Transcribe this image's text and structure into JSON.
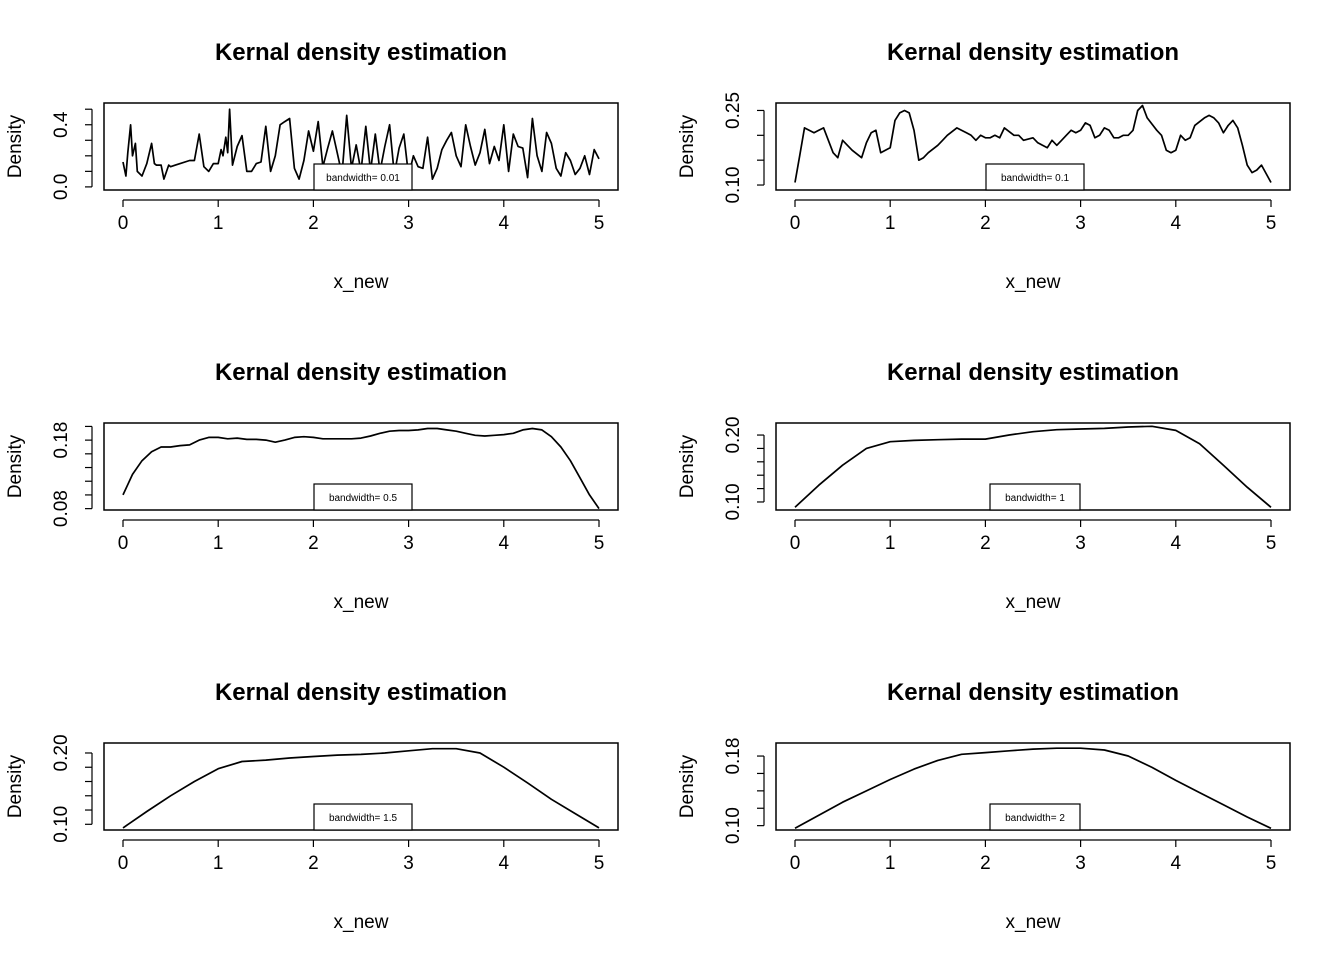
{
  "chart_data": [
    {
      "type": "line",
      "title": "Kernal density estimation",
      "xlabel": "x_new",
      "ylabel": "Density",
      "xlim": [
        0,
        5
      ],
      "ylim": [
        -0.02,
        0.54
      ],
      "x_ticks": [
        "0",
        "1",
        "2",
        "3",
        "4",
        "5"
      ],
      "y_ticks": [
        {
          "v": 0.0,
          "label": "0.0"
        },
        {
          "v": 0.1
        },
        {
          "v": 0.2
        },
        {
          "v": 0.3
        },
        {
          "v": 0.4,
          "label": "0.4"
        },
        {
          "v": 0.5
        }
      ],
      "legend": {
        "label": "bandwidth=",
        "value": "0.01",
        "position": "bottom"
      },
      "series": [
        {
          "x": [
            0,
            0.03,
            0.05,
            0.08,
            0.1,
            0.13,
            0.15,
            0.2,
            0.25,
            0.3,
            0.33,
            0.35,
            0.4,
            0.43,
            0.48,
            0.5,
            0.55,
            0.6,
            0.7,
            0.75,
            0.8,
            0.85,
            0.9,
            0.95,
            1,
            1.03,
            1.05,
            1.08,
            1.1,
            1.12,
            1.15,
            1.2,
            1.25,
            1.3,
            1.35,
            1.4,
            1.45,
            1.5,
            1.55,
            1.6,
            1.65,
            1.7,
            1.75,
            1.8,
            1.85,
            1.9,
            1.95,
            2,
            2.05,
            2.1,
            2.15,
            2.2,
            2.25,
            2.3,
            2.35,
            2.4,
            2.45,
            2.5,
            2.55,
            2.6,
            2.65,
            2.7,
            2.75,
            2.8,
            2.85,
            2.9,
            2.95,
            3,
            3.05,
            3.1,
            3.15,
            3.2,
            3.25,
            3.3,
            3.35,
            3.4,
            3.45,
            3.5,
            3.55,
            3.6,
            3.65,
            3.7,
            3.75,
            3.8,
            3.85,
            3.9,
            3.95,
            4,
            4.05,
            4.1,
            4.15,
            4.2,
            4.25,
            4.3,
            4.35,
            4.4,
            4.45,
            4.5,
            4.55,
            4.6,
            4.65,
            4.7,
            4.75,
            4.8,
            4.85,
            4.9,
            4.95,
            5
          ],
          "y": [
            0.16,
            0.07,
            0.22,
            0.4,
            0.2,
            0.28,
            0.1,
            0.07,
            0.15,
            0.28,
            0.15,
            0.14,
            0.14,
            0.05,
            0.14,
            0.13,
            0.14,
            0.15,
            0.17,
            0.17,
            0.34,
            0.13,
            0.1,
            0.15,
            0.15,
            0.24,
            0.2,
            0.32,
            0.22,
            0.5,
            0.14,
            0.26,
            0.33,
            0.1,
            0.1,
            0.15,
            0.16,
            0.39,
            0.1,
            0.2,
            0.4,
            0.42,
            0.44,
            0.12,
            0.05,
            0.17,
            0.36,
            0.23,
            0.42,
            0.13,
            0.25,
            0.36,
            0.22,
            0.08,
            0.46,
            0.12,
            0.27,
            0.1,
            0.39,
            0.1,
            0.34,
            0.1,
            0.26,
            0.4,
            0.08,
            0.25,
            0.34,
            0.07,
            0.2,
            0.13,
            0.12,
            0.32,
            0.05,
            0.12,
            0.24,
            0.3,
            0.35,
            0.2,
            0.13,
            0.4,
            0.26,
            0.14,
            0.22,
            0.37,
            0.15,
            0.26,
            0.17,
            0.4,
            0.1,
            0.34,
            0.26,
            0.25,
            0.06,
            0.44,
            0.2,
            0.1,
            0.35,
            0.28,
            0.12,
            0.07,
            0.22,
            0.17,
            0.08,
            0.12,
            0.2,
            0.08,
            0.24,
            0.18
          ]
        }
      ]
    },
    {
      "type": "line",
      "title": "Kernal density estimation",
      "xlabel": "x_new",
      "ylabel": "Density",
      "xlim": [
        0,
        5
      ],
      "ylim": [
        0.09,
        0.265
      ],
      "x_ticks": [
        "0",
        "1",
        "2",
        "3",
        "4",
        "5"
      ],
      "y_ticks": [
        {
          "v": 0.1,
          "label": "0.10"
        },
        {
          "v": 0.15
        },
        {
          "v": 0.2
        },
        {
          "v": 0.25,
          "label": "0.25"
        }
      ],
      "legend": {
        "label": "bandwidth=",
        "value": "0.1",
        "position": "bottom"
      },
      "series": [
        {
          "x": [
            0,
            0.05,
            0.1,
            0.2,
            0.25,
            0.3,
            0.4,
            0.45,
            0.5,
            0.6,
            0.7,
            0.75,
            0.8,
            0.85,
            0.9,
            0.95,
            1,
            1.05,
            1.1,
            1.15,
            1.2,
            1.25,
            1.3,
            1.35,
            1.4,
            1.5,
            1.55,
            1.6,
            1.7,
            1.8,
            1.85,
            1.9,
            1.95,
            2,
            2.05,
            2.1,
            2.15,
            2.2,
            2.3,
            2.35,
            2.4,
            2.5,
            2.55,
            2.6,
            2.65,
            2.7,
            2.75,
            2.8,
            2.85,
            2.9,
            2.95,
            3,
            3.05,
            3.1,
            3.15,
            3.2,
            3.25,
            3.3,
            3.35,
            3.4,
            3.45,
            3.5,
            3.55,
            3.6,
            3.65,
            3.7,
            3.8,
            3.85,
            3.9,
            3.95,
            4,
            4.05,
            4.1,
            4.15,
            4.2,
            4.3,
            4.35,
            4.4,
            4.45,
            4.5,
            4.55,
            4.6,
            4.65,
            4.7,
            4.75,
            4.8,
            4.85,
            4.9,
            5
          ],
          "y": [
            0.105,
            0.16,
            0.215,
            0.205,
            0.21,
            0.215,
            0.165,
            0.155,
            0.19,
            0.17,
            0.155,
            0.185,
            0.205,
            0.21,
            0.165,
            0.17,
            0.175,
            0.23,
            0.245,
            0.25,
            0.245,
            0.21,
            0.15,
            0.155,
            0.165,
            0.18,
            0.19,
            0.2,
            0.215,
            0.205,
            0.2,
            0.19,
            0.2,
            0.195,
            0.195,
            0.2,
            0.195,
            0.215,
            0.2,
            0.2,
            0.19,
            0.195,
            0.185,
            0.18,
            0.175,
            0.19,
            0.18,
            0.19,
            0.2,
            0.21,
            0.205,
            0.21,
            0.225,
            0.22,
            0.195,
            0.2,
            0.215,
            0.21,
            0.195,
            0.195,
            0.2,
            0.2,
            0.21,
            0.25,
            0.26,
            0.235,
            0.21,
            0.2,
            0.17,
            0.165,
            0.17,
            0.2,
            0.19,
            0.195,
            0.22,
            0.235,
            0.24,
            0.235,
            0.225,
            0.205,
            0.22,
            0.23,
            0.215,
            0.18,
            0.14,
            0.125,
            0.13,
            0.14,
            0.105
          ]
        }
      ]
    },
    {
      "type": "line",
      "title": "Kernal density estimation",
      "xlabel": "x_new",
      "ylabel": "Density",
      "xlim": [
        0,
        5
      ],
      "ylim": [
        0.078,
        0.205
      ],
      "x_ticks": [
        "0",
        "1",
        "2",
        "3",
        "4",
        "5"
      ],
      "y_ticks": [
        {
          "v": 0.08,
          "label": "0.08"
        },
        {
          "v": 0.1
        },
        {
          "v": 0.12
        },
        {
          "v": 0.14
        },
        {
          "v": 0.16
        },
        {
          "v": 0.18,
          "label": "0.18"
        },
        {
          "v": 0.2
        }
      ],
      "legend": {
        "label": "bandwidth=",
        "value": "0.5",
        "position": "bottom"
      },
      "series": [
        {
          "x": [
            0,
            0.1,
            0.2,
            0.3,
            0.4,
            0.5,
            0.6,
            0.7,
            0.8,
            0.9,
            1,
            1.1,
            1.2,
            1.3,
            1.4,
            1.5,
            1.6,
            1.7,
            1.8,
            1.9,
            2,
            2.1,
            2.2,
            2.3,
            2.4,
            2.5,
            2.6,
            2.7,
            2.8,
            2.9,
            3,
            3.1,
            3.2,
            3.3,
            3.4,
            3.5,
            3.6,
            3.7,
            3.8,
            3.9,
            4,
            4.1,
            4.2,
            4.3,
            4.4,
            4.5,
            4.6,
            4.7,
            4.8,
            4.9,
            5
          ],
          "y": [
            0.1,
            0.13,
            0.15,
            0.163,
            0.17,
            0.17,
            0.172,
            0.173,
            0.18,
            0.184,
            0.184,
            0.182,
            0.183,
            0.181,
            0.181,
            0.18,
            0.177,
            0.18,
            0.184,
            0.185,
            0.184,
            0.182,
            0.182,
            0.182,
            0.182,
            0.183,
            0.186,
            0.19,
            0.193,
            0.194,
            0.194,
            0.195,
            0.197,
            0.197,
            0.195,
            0.193,
            0.19,
            0.187,
            0.186,
            0.187,
            0.188,
            0.19,
            0.195,
            0.197,
            0.195,
            0.185,
            0.17,
            0.15,
            0.125,
            0.1,
            0.08
          ]
        }
      ]
    },
    {
      "type": "line",
      "title": "Kernal density estimation",
      "xlabel": "x_new",
      "ylabel": "Density",
      "xlim": [
        0,
        5
      ],
      "ylim": [
        0.088,
        0.218
      ],
      "x_ticks": [
        "0",
        "1",
        "2",
        "3",
        "4",
        "5"
      ],
      "y_ticks": [
        {
          "v": 0.1,
          "label": "0.10"
        },
        {
          "v": 0.12
        },
        {
          "v": 0.14
        },
        {
          "v": 0.16
        },
        {
          "v": 0.18
        },
        {
          "v": 0.2,
          "label": "0.20"
        }
      ],
      "legend": {
        "label": "bandwidth=",
        "value": "1",
        "position": "bottom"
      },
      "series": [
        {
          "x": [
            0,
            0.25,
            0.5,
            0.75,
            1,
            1.25,
            1.5,
            1.75,
            2,
            2.25,
            2.5,
            2.75,
            3,
            3.25,
            3.5,
            3.75,
            4,
            4.25,
            4.5,
            4.75,
            5
          ],
          "y": [
            0.092,
            0.125,
            0.155,
            0.18,
            0.19,
            0.192,
            0.193,
            0.194,
            0.194,
            0.2,
            0.205,
            0.208,
            0.209,
            0.21,
            0.212,
            0.213,
            0.207,
            0.187,
            0.155,
            0.122,
            0.092
          ]
        }
      ]
    },
    {
      "type": "line",
      "title": "Kernal density estimation",
      "xlabel": "x_new",
      "ylabel": "Density",
      "xlim": [
        0,
        5
      ],
      "ylim": [
        0.092,
        0.214
      ],
      "x_ticks": [
        "0",
        "1",
        "2",
        "3",
        "4",
        "5"
      ],
      "y_ticks": [
        {
          "v": 0.1,
          "label": "0.10"
        },
        {
          "v": 0.12
        },
        {
          "v": 0.14
        },
        {
          "v": 0.16
        },
        {
          "v": 0.18
        },
        {
          "v": 0.2,
          "label": "0.20"
        }
      ],
      "legend": {
        "label": "bandwidth=",
        "value": "1.5",
        "position": "bottom"
      },
      "series": [
        {
          "x": [
            0,
            0.25,
            0.5,
            0.75,
            1,
            1.25,
            1.5,
            1.75,
            2,
            2.25,
            2.5,
            2.75,
            3,
            3.25,
            3.5,
            3.75,
            4,
            4.25,
            4.5,
            4.75,
            5
          ],
          "y": [
            0.095,
            0.118,
            0.14,
            0.16,
            0.178,
            0.188,
            0.19,
            0.193,
            0.195,
            0.197,
            0.198,
            0.2,
            0.203,
            0.206,
            0.206,
            0.2,
            0.18,
            0.158,
            0.135,
            0.115,
            0.095
          ]
        }
      ]
    },
    {
      "type": "line",
      "title": "Kernal density estimation",
      "xlabel": "x_new",
      "ylabel": "Density",
      "xlim": [
        0,
        5
      ],
      "ylim": [
        0.095,
        0.195
      ],
      "x_ticks": [
        "0",
        "1",
        "2",
        "3",
        "4",
        "5"
      ],
      "y_ticks": [
        {
          "v": 0.1,
          "label": "0.10"
        },
        {
          "v": 0.12
        },
        {
          "v": 0.14
        },
        {
          "v": 0.16
        },
        {
          "v": 0.18,
          "label": "0.18"
        }
      ],
      "legend": {
        "label": "bandwidth=",
        "value": "2",
        "position": "bottom"
      },
      "series": [
        {
          "x": [
            0,
            0.25,
            0.5,
            0.75,
            1,
            1.25,
            1.5,
            1.75,
            2,
            2.25,
            2.5,
            2.75,
            3,
            3.25,
            3.5,
            3.75,
            4,
            4.25,
            4.5,
            4.75,
            5
          ],
          "y": [
            0.097,
            0.112,
            0.127,
            0.14,
            0.153,
            0.165,
            0.175,
            0.182,
            0.184,
            0.186,
            0.188,
            0.189,
            0.189,
            0.187,
            0.18,
            0.167,
            0.152,
            0.138,
            0.124,
            0.11,
            0.097
          ]
        }
      ]
    }
  ]
}
